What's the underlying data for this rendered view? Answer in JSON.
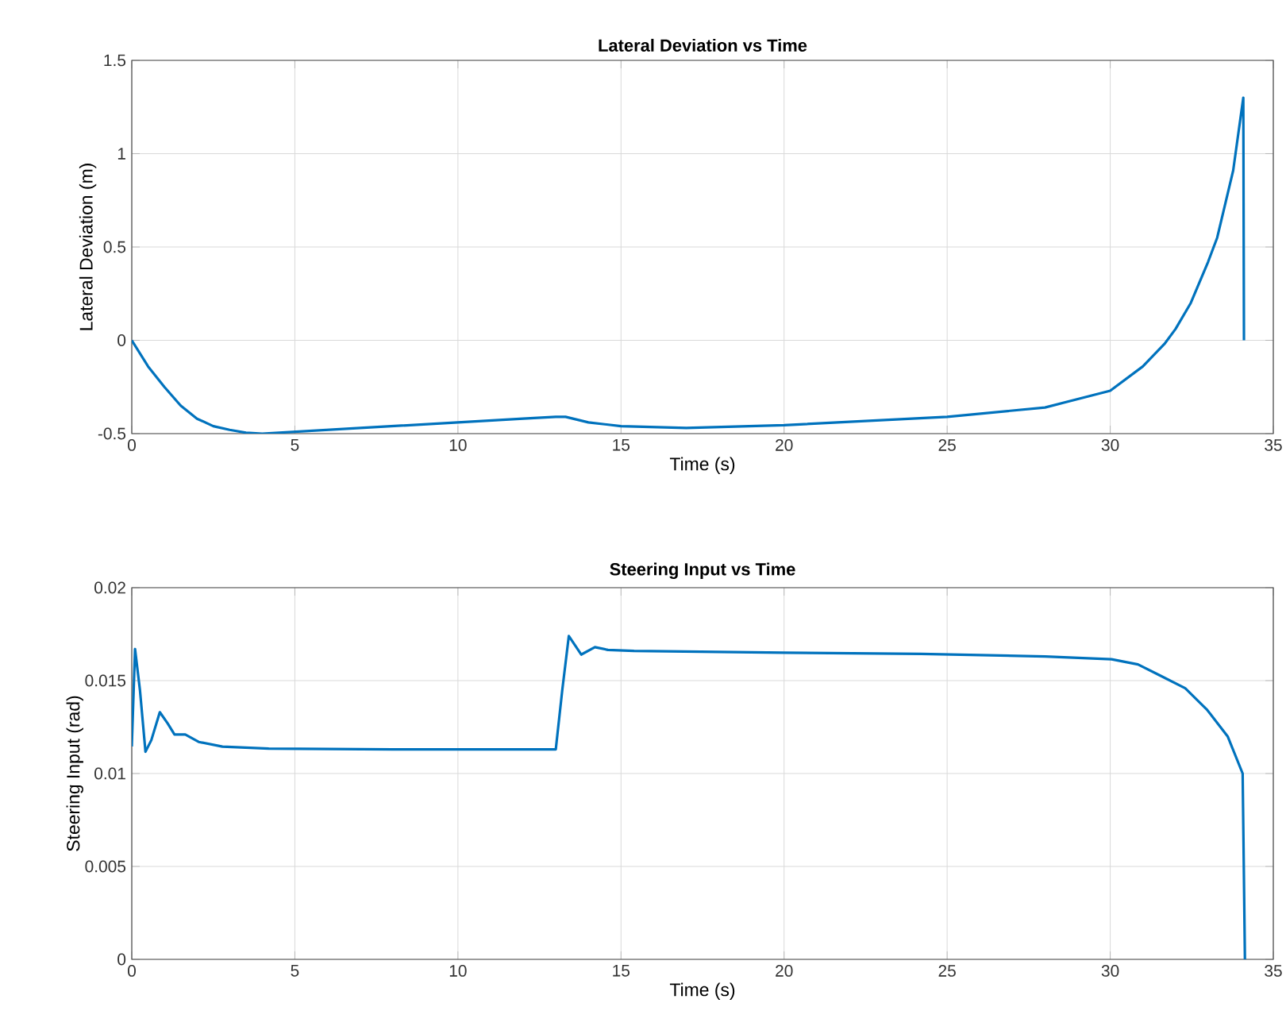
{
  "chart_data": [
    {
      "type": "line",
      "title": "Lateral Deviation vs Time",
      "xlabel": "Time (s)",
      "ylabel": "Lateral Deviation (m)",
      "x": [
        0,
        0.5,
        1,
        1.5,
        2,
        2.5,
        3,
        3.5,
        4,
        5,
        7,
        10,
        12,
        13,
        13.3,
        14,
        15,
        17,
        20,
        25,
        28,
        30,
        31,
        31.66,
        32,
        32.47,
        33,
        33.28,
        33.77,
        34.08,
        34.1
      ],
      "series": [
        {
          "color": "#0072bd",
          "values": [
            0,
            -0.14,
            -0.25,
            -0.35,
            -0.42,
            -0.46,
            -0.48,
            -0.495,
            -0.5,
            -0.49,
            -0.47,
            -0.44,
            -0.42,
            -0.41,
            -0.41,
            -0.44,
            -0.46,
            -0.47,
            -0.455,
            -0.41,
            -0.36,
            -0.27,
            -0.14,
            -0.02,
            0.06,
            0.2,
            0.42,
            0.55,
            0.91,
            1.3,
            0
          ]
        }
      ],
      "xlim": [
        0,
        35
      ],
      "ylim": [
        -0.5,
        1.5
      ],
      "xticks": [
        0,
        5,
        10,
        15,
        20,
        25,
        30,
        35
      ],
      "yticks": [
        -0.5,
        0,
        0.5,
        1,
        1.5
      ],
      "grid": true
    },
    {
      "type": "line",
      "title": "Steering Input vs Time",
      "xlabel": "Time (s)",
      "ylabel": "Steering Input (rad)",
      "x": [
        0,
        0.1,
        0.25,
        0.42,
        0.6,
        0.86,
        1.1,
        1.31,
        1.64,
        2.05,
        2.78,
        4.2,
        8,
        13.0,
        13.2,
        13.4,
        13.78,
        14.2,
        14.6,
        15.4,
        20,
        24.2,
        28,
        30.04,
        30.85,
        31.5,
        32.3,
        32.96,
        33.6,
        34.06,
        34.13
      ],
      "series": [
        {
          "color": "#0072bd",
          "values": [
            0.01145,
            0.0167,
            0.0145,
            0.01117,
            0.0118,
            0.0133,
            0.0127,
            0.0121,
            0.0121,
            0.0117,
            0.01145,
            0.01134,
            0.0113,
            0.0113,
            0.0145,
            0.0174,
            0.0164,
            0.0168,
            0.01665,
            0.0166,
            0.0165,
            0.01644,
            0.0163,
            0.01615,
            0.01587,
            0.0153,
            0.01459,
            0.01345,
            0.012,
            0.01,
            0
          ]
        }
      ],
      "xlim": [
        0,
        35
      ],
      "ylim": [
        0,
        0.02
      ],
      "xticks": [
        0,
        5,
        10,
        15,
        20,
        25,
        30,
        35
      ],
      "yticks": [
        0,
        0.005,
        0.01,
        0.015,
        0.02
      ],
      "grid": true
    }
  ]
}
